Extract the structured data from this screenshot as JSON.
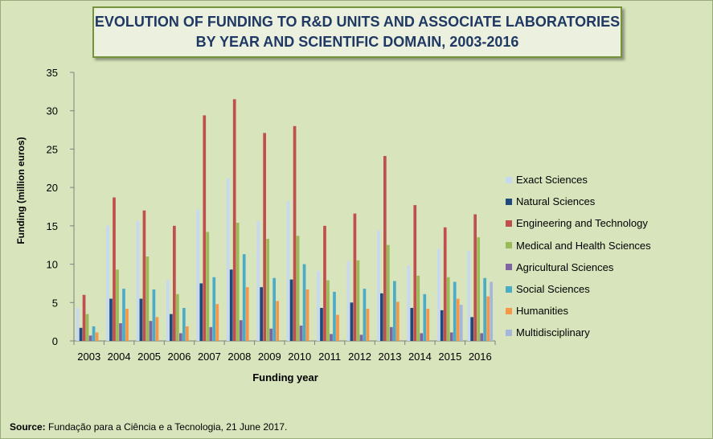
{
  "title_line1": "EVOLUTION OF FUNDING TO R&D UNITS AND ASSOCIATE LABORATORIES",
  "title_line2": "BY YEAR AND SCIENTIFIC DOMAIN, 2003-2016",
  "source_label": "Source:",
  "source_text": "Fundação para a Ciência e a Tecnologia, 21 June 2017.",
  "chart_data": {
    "type": "bar",
    "title": "EVOLUTION OF FUNDING TO R&D UNITS AND ASSOCIATE LABORATORIES BY YEAR AND SCIENTIFIC DOMAIN, 2003-2016",
    "xlabel": "Funding year",
    "ylabel": "Funding (million euros)",
    "ylim": [
      0,
      35
    ],
    "yticks": [
      0,
      5,
      10,
      15,
      20,
      25,
      30,
      35
    ],
    "grid": false,
    "legend_position": "right",
    "categories": [
      "2003",
      "2004",
      "2005",
      "2006",
      "2007",
      "2008",
      "2009",
      "2010",
      "2011",
      "2012",
      "2013",
      "2014",
      "2015",
      "2016"
    ],
    "series": [
      {
        "name": "Exact Sciences",
        "color": "#c6d9f1",
        "values": [
          4.3,
          15.0,
          15.6,
          7.9,
          17.1,
          21.2,
          15.6,
          18.2,
          9.1,
          10.4,
          14.4,
          9.8,
          12.0,
          11.7
        ]
      },
      {
        "name": "Natural Sciences",
        "color": "#1f497d",
        "values": [
          1.7,
          5.5,
          5.5,
          3.5,
          7.5,
          9.3,
          7.0,
          8.0,
          4.3,
          5.0,
          6.2,
          4.3,
          4.0,
          3.1
        ]
      },
      {
        "name": "Engineering and Technology",
        "color": "#c0504d",
        "values": [
          6.0,
          18.7,
          17.0,
          15.0,
          29.4,
          31.5,
          27.1,
          28.0,
          15.0,
          16.6,
          24.1,
          17.7,
          14.8,
          16.5
        ]
      },
      {
        "name": "Medical and Health Sciences",
        "color": "#9bbb59",
        "values": [
          3.5,
          9.3,
          11.0,
          6.1,
          14.2,
          15.4,
          13.3,
          13.7,
          7.9,
          10.5,
          12.5,
          8.5,
          8.3,
          13.5
        ]
      },
      {
        "name": "Agricultural Sciences",
        "color": "#8064a2",
        "values": [
          0.7,
          2.3,
          2.6,
          1.0,
          1.8,
          2.7,
          1.6,
          2.0,
          0.9,
          0.8,
          1.8,
          1.0,
          1.1,
          1.0
        ]
      },
      {
        "name": "Social Sciences",
        "color": "#4bacc6",
        "values": [
          1.9,
          6.8,
          6.7,
          4.3,
          8.3,
          11.3,
          8.2,
          10.0,
          6.4,
          6.8,
          7.8,
          6.1,
          7.7,
          8.2
        ]
      },
      {
        "name": "Humanities",
        "color": "#f79646",
        "values": [
          1.1,
          4.2,
          3.1,
          1.9,
          4.8,
          7.0,
          5.2,
          6.7,
          3.4,
          4.2,
          5.1,
          4.2,
          5.5,
          5.8
        ]
      },
      {
        "name": "Multidisciplinary",
        "color": "#a5b6dc",
        "values": [
          0,
          0,
          0,
          0,
          0,
          0,
          0,
          0,
          0,
          0,
          0,
          0,
          4.7,
          7.7
        ]
      }
    ]
  }
}
